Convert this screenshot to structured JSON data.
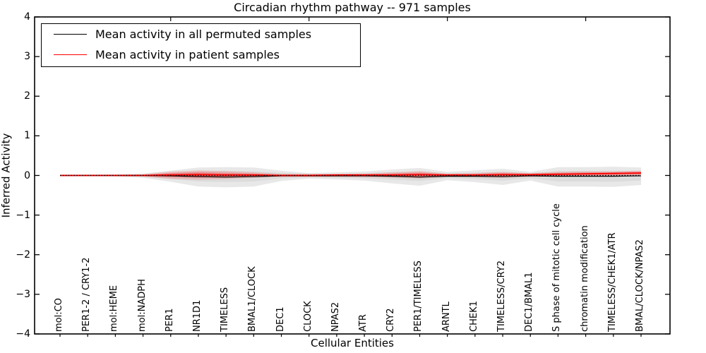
{
  "title": "Circadian rhythm pathway -- 971 samples",
  "axes": {
    "xlabel": "Cellular Entities",
    "ylabel": "Inferred Activity",
    "yticks": [
      {
        "label": "4",
        "value": 4
      },
      {
        "label": "3",
        "value": 3
      },
      {
        "label": "2",
        "value": 2
      },
      {
        "label": "1",
        "value": 1
      },
      {
        "label": "0",
        "value": 0
      },
      {
        "label": "−1",
        "value": -1
      },
      {
        "label": "−2",
        "value": -2
      },
      {
        "label": "−3",
        "value": -3
      },
      {
        "label": "−4",
        "value": -4
      }
    ],
    "top_tick_category_indices": [
      4,
      9,
      14,
      19
    ]
  },
  "legend": {
    "items": [
      {
        "label": "Mean activity in all permuted samples",
        "color": "#000000"
      },
      {
        "label": "Mean activity in patient samples",
        "color": "#ff0000"
      }
    ]
  },
  "colors": {
    "permuted_line": "#000000",
    "patient_line": "#ff0000",
    "envelope_fill": "#000000",
    "background": "#ffffff"
  },
  "chart_data": {
    "type": "line",
    "title": "Circadian rhythm pathway -- 971 samples",
    "xlabel": "Cellular Entities",
    "ylabel": "Inferred Activity",
    "ylim": [
      -4,
      4
    ],
    "grid": false,
    "legend_position": "upper left",
    "categories": [
      "mol:CO",
      "PER1-2 / CRY1-2",
      "mol:HEME",
      "mol:NADPH",
      "PER1",
      "NR1D1",
      "TIMELESS",
      "BMAL1/CLOCK",
      "DEC1",
      "CLOCK",
      "NPAS2",
      "ATR",
      "CRY2",
      "PER1/TIMELESS",
      "ARNTL",
      "CHEK1",
      "TIMELESS/CRY2",
      "DEC1/BMAL1",
      "S phase of mitotic cell cycle",
      "chromatin modification",
      "TIMELESS/CHEK1/ATR",
      "BMAL/CLOCK/NPAS2"
    ],
    "series": [
      {
        "name": "Mean activity in all permuted samples",
        "color": "#000000",
        "style": "solid",
        "values": [
          0,
          0,
          0,
          0,
          -0.01,
          -0.03,
          -0.04,
          -0.03,
          -0.01,
          -0.01,
          -0.01,
          -0.01,
          -0.02,
          -0.04,
          -0.02,
          -0.02,
          -0.03,
          -0.01,
          -0.02,
          -0.02,
          -0.02,
          -0.01
        ]
      },
      {
        "name": "Mean activity in patient samples",
        "color": "#ff0000",
        "style": "solid",
        "values": [
          0,
          0,
          0,
          0,
          0.01,
          0.02,
          0.01,
          0.01,
          0,
          0,
          0.01,
          0.01,
          0.01,
          0.02,
          0.01,
          0.01,
          0.02,
          0.02,
          0.03,
          0.04,
          0.05,
          0.06
        ]
      }
    ],
    "bands": [
      {
        "name": "permuted-envelope",
        "color": "#000000",
        "opacity": 0.09,
        "upper": [
          0.02,
          0.02,
          0.03,
          0.05,
          0.12,
          0.2,
          0.21,
          0.2,
          0.12,
          0.06,
          0.08,
          0.1,
          0.15,
          0.19,
          0.09,
          0.13,
          0.17,
          0.09,
          0.21,
          0.21,
          0.22,
          0.2
        ],
        "lower": [
          -0.02,
          -0.02,
          -0.03,
          -0.06,
          -0.16,
          -0.28,
          -0.3,
          -0.28,
          -0.14,
          -0.08,
          -0.1,
          -0.13,
          -0.2,
          -0.26,
          -0.12,
          -0.17,
          -0.24,
          -0.13,
          -0.28,
          -0.28,
          -0.29,
          -0.24
        ]
      },
      {
        "name": "patient-spread",
        "color": "#ff0000",
        "opacity": 0.18,
        "upper": [
          0.02,
          0.02,
          0.02,
          0.03,
          0.1,
          0.13,
          0.11,
          0.08,
          0.04,
          0.04,
          0.04,
          0.05,
          0.08,
          0.11,
          0.05,
          0.06,
          0.09,
          0.06,
          0.09,
          0.1,
          0.1,
          0.12
        ],
        "lower": [
          -0.02,
          -0.02,
          -0.02,
          -0.03,
          -0.09,
          -0.11,
          -0.09,
          -0.06,
          -0.04,
          -0.04,
          -0.04,
          -0.05,
          -0.06,
          -0.08,
          -0.04,
          -0.05,
          -0.06,
          -0.04,
          -0.03,
          -0.02,
          -0.01,
          0
        ]
      }
    ],
    "zero_line": {
      "style": "dotted",
      "color": "#000000",
      "value": 0
    }
  }
}
